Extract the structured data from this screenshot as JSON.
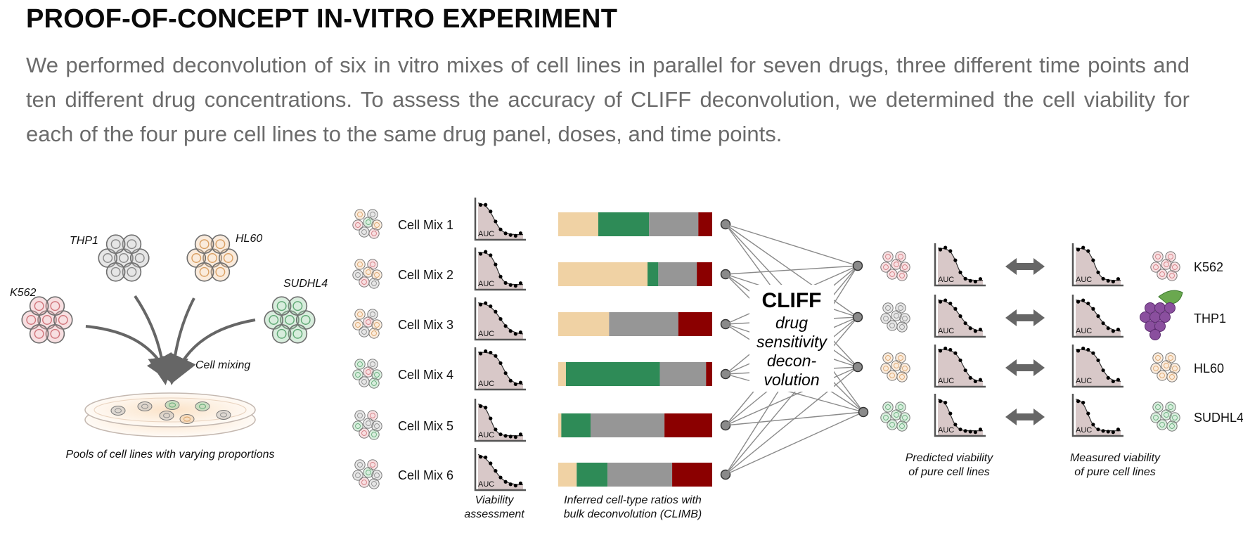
{
  "title": "PROOF-OF-CONCEPT IN-VITRO EXPERIMENT",
  "subtitle": "We performed deconvolution of six in vitro mixes of cell lines in parallel for seven drugs, three different time points and ten different drug concentrations. To assess the accuracy of CLIFF deconvolution, we determined the cell viability for each of the four pure cell lines to the same drug panel, doses, and time points.",
  "colors": {
    "K562": "#e9a3a8",
    "THP1": "#b8b8b8",
    "HL60": "#f0c79a",
    "SUDHL4": "#8fcb9f",
    "bar_HL60": "#f0d2a4",
    "bar_SUDHL4": "#2e8b57",
    "bar_THP1": "#969696",
    "bar_K562": "#8b0000",
    "curve_fill": "#d8c8c8"
  },
  "left_panel": {
    "cell_labels": [
      "K562",
      "THP1",
      "HL60",
      "SUDHL4"
    ],
    "mixing_label": "Cell mixing",
    "pool_caption": "Pools of cell lines with varying proportions"
  },
  "mixes": [
    {
      "label": "Cell Mix 1",
      "composition": [
        "HL60",
        "THP1",
        "K562",
        "SUDHL4"
      ],
      "ratios": {
        "HL60": 0.26,
        "SUDHL4": 0.33,
        "THP1": 0.32,
        "K562": 0.09
      }
    },
    {
      "label": "Cell Mix 2",
      "composition": [
        "HL60",
        "K562",
        "THP1",
        "HL60"
      ],
      "ratios": {
        "HL60": 0.58,
        "SUDHL4": 0.07,
        "THP1": 0.25,
        "K562": 0.1
      }
    },
    {
      "label": "Cell Mix 3",
      "composition": [
        "HL60",
        "THP1",
        "HL60",
        "K562"
      ],
      "ratios": {
        "HL60": 0.33,
        "SUDHL4": 0.0,
        "THP1": 0.45,
        "K562": 0.22
      }
    },
    {
      "label": "Cell Mix 4",
      "composition": [
        "SUDHL4",
        "THP1",
        "SUDHL4",
        "K562"
      ],
      "ratios": {
        "HL60": 0.05,
        "SUDHL4": 0.61,
        "THP1": 0.3,
        "K562": 0.04
      }
    },
    {
      "label": "Cell Mix 5",
      "composition": [
        "THP1",
        "K562",
        "SUDHL4",
        "THP1"
      ],
      "ratios": {
        "HL60": 0.02,
        "SUDHL4": 0.19,
        "THP1": 0.48,
        "K562": 0.31
      }
    },
    {
      "label": "Cell Mix 6",
      "composition": [
        "THP1",
        "K562",
        "THP1",
        "SUDHL4"
      ],
      "ratios": {
        "HL60": 0.12,
        "SUDHL4": 0.2,
        "THP1": 0.42,
        "K562": 0.26
      }
    }
  ],
  "auc_label": "AUC",
  "viability_caption": [
    "Viability",
    "assessment"
  ],
  "bars_caption": [
    "Inferred cell-type ratios with",
    "bulk deconvolution (CLIMB)"
  ],
  "cliff": {
    "name": "CLIFF",
    "lines": [
      "drug",
      "sensitivity",
      "decon-",
      "volution"
    ]
  },
  "pure_lines": [
    {
      "label": "K562",
      "type": "K562"
    },
    {
      "label": "THP1",
      "type": "THP1"
    },
    {
      "label": "HL60",
      "type": "HL60"
    },
    {
      "label": "SUDHL4",
      "type": "SUDHL4"
    }
  ],
  "predicted_caption": [
    "Predicted viability",
    "of pure cell lines"
  ],
  "measured_caption": [
    "Measured viability",
    "of pure cell lines"
  ]
}
